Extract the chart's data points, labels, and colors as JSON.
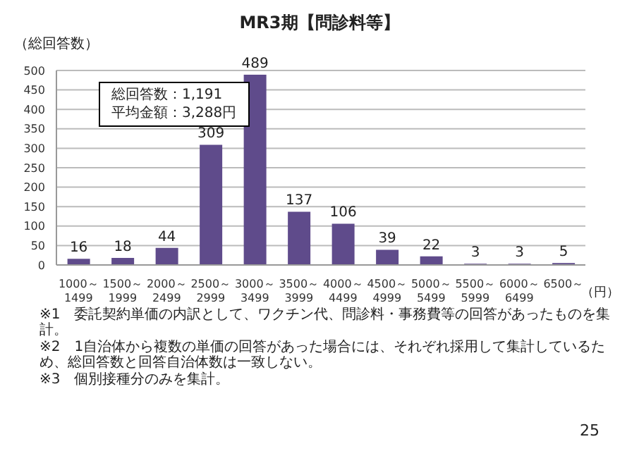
{
  "chart_data": {
    "type": "bar",
    "title": "MR3期【問診料等】",
    "ylabel": "（総回答数）",
    "xlabel": "（円）",
    "categories": [
      "1000～1499",
      "1500～1999",
      "2000～2499",
      "2500～2999",
      "3000～3499",
      "3500～3999",
      "4000～4499",
      "4500～4999",
      "5000～5499",
      "5500～5999",
      "6000～6499",
      "6500～"
    ],
    "values": [
      16,
      18,
      44,
      309,
      489,
      137,
      106,
      39,
      22,
      3,
      3,
      5
    ],
    "color": "#5f4b8b",
    "ylim": [
      0,
      500
    ],
    "yticks": [
      0,
      50,
      100,
      150,
      200,
      250,
      300,
      350,
      400,
      450,
      500
    ],
    "grid": "y",
    "data_labels": true,
    "annotations": [
      "総回答数：1,191",
      "平均金額：3,288円",
      "※1　委託契約単価の内訳として、ワクチン代、問診料・事務費等の回答があったものを集計。",
      "※2　1自治体から複数の単価の回答があった場合には、それぞれ採用して集計しているため、総回答数と回答自治体数は一致しない。",
      "※3　個別接種分のみを集計。",
      "25"
    ]
  }
}
